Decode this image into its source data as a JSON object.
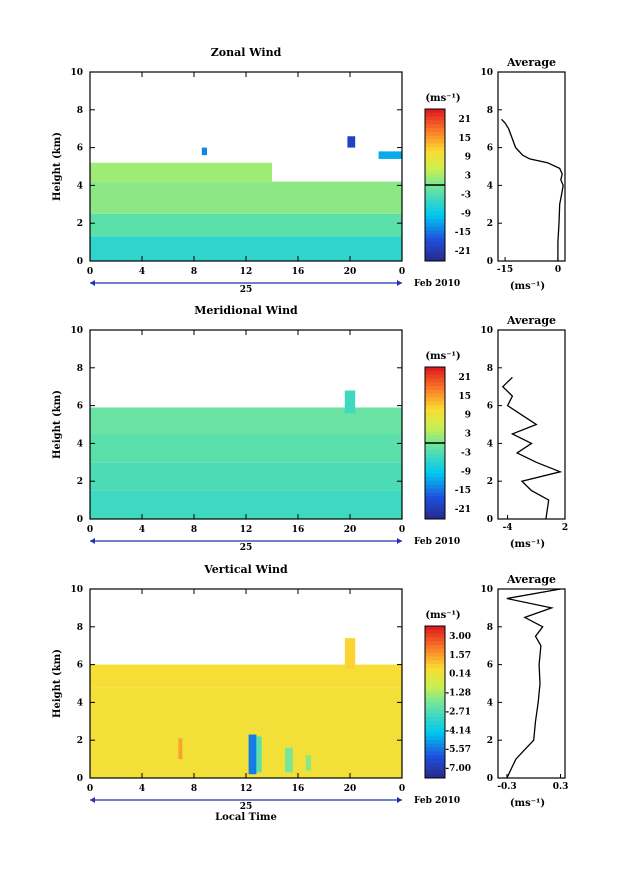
{
  "x_axis": {
    "ticks": [
      "0",
      "4",
      "8",
      "12",
      "16",
      "20",
      "0"
    ],
    "day_label": "25",
    "month_label": "Feb 2010",
    "label": "Local Time"
  },
  "charts": [
    {
      "title": "Zonal Wind",
      "ylabel": "Height (km)",
      "y_ticks": [
        "0",
        "2",
        "4",
        "6",
        "8",
        "10"
      ],
      "unit_label": "(ms⁻¹)",
      "colorbar_ticks": [
        "21",
        "15",
        "9",
        "3",
        "-3",
        "-9",
        "-15",
        "-21"
      ],
      "avg_title": "Average",
      "avg_xticks": [
        "-15",
        "0"
      ],
      "avg_unit": "(ms⁻¹)"
    },
    {
      "title": "Meridional Wind",
      "ylabel": "Height (km)",
      "y_ticks": [
        "0",
        "2",
        "4",
        "6",
        "8",
        "10"
      ],
      "unit_label": "(ms⁻¹)",
      "colorbar_ticks": [
        "21",
        "15",
        "9",
        "3",
        "-3",
        "-9",
        "-15",
        "-21"
      ],
      "avg_title": "Average",
      "avg_xticks": [
        "-4",
        "2"
      ],
      "avg_unit": "(ms⁻¹)"
    },
    {
      "title": "Vertical Wind",
      "ylabel": "Height (km)",
      "y_ticks": [
        "0",
        "2",
        "4",
        "6",
        "8",
        "10"
      ],
      "unit_label": "(ms⁻¹)",
      "colorbar_ticks": [
        "3.00",
        "1.57",
        "0.14",
        "-1.28",
        "-2.71",
        "-4.14",
        "-5.57",
        "-7.00"
      ],
      "avg_title": "Average",
      "avg_xticks": [
        "-0.3",
        "0.3"
      ],
      "avg_unit": "(ms⁻¹)"
    }
  ],
  "chart_data": [
    {
      "type": "heatmap",
      "title": "Zonal Wind",
      "xlabel": "",
      "ylabel": "Height (km)",
      "xlim": [
        0,
        24
      ],
      "ylim": [
        0,
        10
      ],
      "colorbar_range": [
        -21,
        21
      ],
      "regions": [
        {
          "x": [
            0,
            24
          ],
          "y": [
            0,
            1.3
          ],
          "value": -5
        },
        {
          "x": [
            0,
            24
          ],
          "y": [
            1.3,
            2.5
          ],
          "value": -2
        },
        {
          "x": [
            0,
            24
          ],
          "y": [
            2.5,
            4.2
          ],
          "value": 1
        },
        {
          "x": [
            0,
            14
          ],
          "y": [
            4.2,
            5.2
          ],
          "value": 2
        },
        {
          "x": [
            8.6,
            9.0
          ],
          "y": [
            5.6,
            6.0
          ],
          "value": -12
        },
        {
          "x": [
            19.8,
            20.4
          ],
          "y": [
            6.0,
            6.6
          ],
          "value": -17
        },
        {
          "x": [
            22.2,
            24
          ],
          "y": [
            5.4,
            5.8
          ],
          "value": -10
        }
      ],
      "average_profile": {
        "xlim": [
          -17,
          2
        ],
        "height": [
          0,
          1,
          2,
          3,
          3.5,
          4,
          4.3,
          4.6,
          4.9,
          5.2,
          5.4,
          5.6,
          6.0,
          6.5,
          7.0,
          7.3,
          7.5
        ],
        "value": [
          0,
          0,
          0.3,
          0.5,
          1.0,
          1.5,
          0.8,
          1.2,
          0.5,
          -3,
          -8,
          -10,
          -12,
          -13,
          -14,
          -15,
          -16
        ]
      }
    },
    {
      "type": "heatmap",
      "title": "Meridional Wind",
      "xlabel": "",
      "ylabel": "Height (km)",
      "xlim": [
        0,
        24
      ],
      "ylim": [
        0,
        10
      ],
      "colorbar_range": [
        -21,
        21
      ],
      "regions": [
        {
          "x": [
            0,
            24
          ],
          "y": [
            0,
            1.5
          ],
          "value": -4
        },
        {
          "x": [
            0,
            24
          ],
          "y": [
            1.5,
            3.0
          ],
          "value": -3
        },
        {
          "x": [
            0,
            24
          ],
          "y": [
            3.0,
            4.5
          ],
          "value": -2
        },
        {
          "x": [
            0,
            24
          ],
          "y": [
            4.5,
            5.9
          ],
          "value": -1
        },
        {
          "x": [
            19.6,
            20.4
          ],
          "y": [
            5.6,
            6.8
          ],
          "value": -4
        }
      ],
      "average_profile": {
        "xlim": [
          -5,
          2
        ],
        "height": [
          0,
          1,
          1.5,
          2,
          2.5,
          3,
          3.5,
          4,
          4.5,
          5,
          5.5,
          6,
          6.5,
          7,
          7.5
        ],
        "value": [
          0,
          0.3,
          -1.5,
          -2.5,
          1.5,
          -1,
          -3,
          -1.5,
          -3.5,
          -1,
          -2.5,
          -4,
          -3.5,
          -4.5,
          -3.5
        ]
      }
    },
    {
      "type": "heatmap",
      "title": "Vertical Wind",
      "xlabel": "Local Time",
      "ylabel": "Height (km)",
      "xlim": [
        0,
        24
      ],
      "ylim": [
        0,
        10
      ],
      "colorbar_range": [
        -7.0,
        3.0
      ],
      "regions": [
        {
          "x": [
            0,
            24
          ],
          "y": [
            0,
            4.8
          ],
          "value": 0.0
        },
        {
          "x": [
            0,
            24
          ],
          "y": [
            4.8,
            6.0
          ],
          "value": 0.1
        },
        {
          "x": [
            12.2,
            12.8
          ],
          "y": [
            0.2,
            2.3
          ],
          "value": -5.0
        },
        {
          "x": [
            12.8,
            13.2
          ],
          "y": [
            0.3,
            2.2
          ],
          "value": -2.5
        },
        {
          "x": [
            15.0,
            15.6
          ],
          "y": [
            0.3,
            1.6
          ],
          "value": -2.0
        },
        {
          "x": [
            16.6,
            17.0
          ],
          "y": [
            0.4,
            1.2
          ],
          "value": -1.8
        },
        {
          "x": [
            6.8,
            7.1
          ],
          "y": [
            1.0,
            2.1
          ],
          "value": 1.0
        },
        {
          "x": [
            19.6,
            20.4
          ],
          "y": [
            5.8,
            7.4
          ],
          "value": 0.3
        }
      ],
      "average_profile": {
        "xlim": [
          -0.4,
          0.35
        ],
        "height": [
          0,
          0.5,
          1,
          1.5,
          2,
          3,
          4,
          5,
          6,
          7,
          7.5,
          8,
          8.5,
          9,
          9.5,
          10
        ],
        "value": [
          -0.3,
          -0.25,
          -0.2,
          -0.1,
          0.0,
          0.02,
          0.05,
          0.07,
          0.06,
          0.08,
          0.02,
          0.1,
          -0.1,
          0.2,
          -0.3,
          0.3
        ]
      }
    }
  ]
}
